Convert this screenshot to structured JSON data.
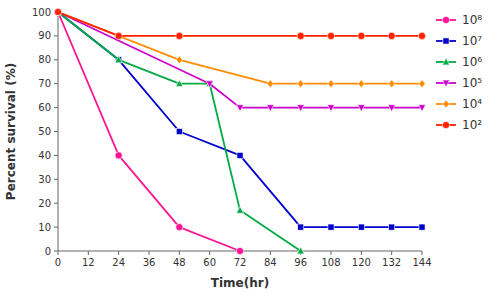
{
  "chart_data": {
    "type": "line",
    "xlabel": "Time(hr)",
    "ylabel": "Percent survival (%)",
    "xlim": [
      0,
      144
    ],
    "ylim": [
      0,
      100
    ],
    "xticks": [
      0,
      12,
      24,
      36,
      48,
      60,
      72,
      84,
      96,
      108,
      120,
      132,
      144
    ],
    "yticks": [
      0,
      10,
      20,
      30,
      40,
      50,
      60,
      70,
      80,
      90,
      100
    ],
    "grid": false,
    "legend": "right",
    "series": [
      {
        "name": "10⁸",
        "color": "#FF1493",
        "marker": "circle",
        "line_style": "solid",
        "x": [
          0,
          24,
          48,
          72
        ],
        "values": [
          100,
          40,
          10,
          0
        ]
      },
      {
        "name": "10⁷",
        "color": "#0000CC",
        "marker": "square",
        "line_style": "solid",
        "x": [
          0,
          24,
          48,
          72,
          96,
          108,
          120,
          132,
          144
        ],
        "values": [
          100,
          80,
          50,
          40,
          10,
          10,
          10,
          10,
          10
        ]
      },
      {
        "name": "10⁶",
        "color": "#00AA44",
        "marker": "triangle-up",
        "line_style": "solid",
        "x": [
          0,
          24,
          48,
          60,
          72,
          96
        ],
        "values": [
          100,
          80,
          70,
          70,
          17,
          0
        ]
      },
      {
        "name": "10⁵",
        "color": "#CC00CC",
        "marker": "triangle-down",
        "line_style": "solid",
        "x": [
          0,
          60,
          72,
          84,
          96,
          108,
          120,
          132,
          144
        ],
        "values": [
          100,
          70,
          60,
          60,
          60,
          60,
          60,
          60,
          60
        ]
      },
      {
        "name": "10⁴",
        "color": "#FF8C00",
        "marker": "diamond",
        "line_style": "solid",
        "x": [
          0,
          48,
          84,
          96,
          108,
          120,
          132,
          144
        ],
        "values": [
          100,
          80,
          70,
          70,
          70,
          70,
          70,
          70
        ]
      },
      {
        "name": "10²",
        "color": "#FF2200",
        "marker": "circle",
        "line_style": "solid",
        "x": [
          0,
          24,
          48,
          96,
          108,
          120,
          132,
          144
        ],
        "values": [
          100,
          90,
          90,
          90,
          90,
          90,
          90,
          90
        ]
      }
    ]
  }
}
